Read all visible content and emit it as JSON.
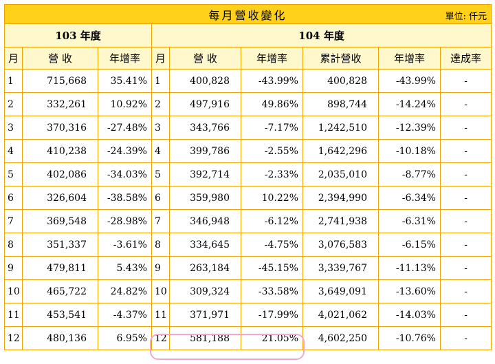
{
  "title": "每月營收變化",
  "unit_label": "單位: 仟元",
  "year_103": "103 年度",
  "year_104": "104 年度",
  "headers_103": [
    "月",
    "營 收",
    "年增率"
  ],
  "headers_104": [
    "月",
    "營 收",
    "年增率",
    "累計營收",
    "年增率",
    "達成率"
  ],
  "rows": [
    {
      "m103": "1",
      "rev103": "715,668",
      "yoy103": "35.41%",
      "m104": "1",
      "rev104": "400,828",
      "yoy104": "-43.99%",
      "cum104": "400,828",
      "cumyoy104": "-43.99%",
      "ach": "-"
    },
    {
      "m103": "2",
      "rev103": "332,261",
      "yoy103": "10.92%",
      "m104": "2",
      "rev104": "497,916",
      "yoy104": "49.86%",
      "cum104": "898,744",
      "cumyoy104": "-14.24%",
      "ach": "-"
    },
    {
      "m103": "3",
      "rev103": "370,316",
      "yoy103": "-27.48%",
      "m104": "3",
      "rev104": "343,766",
      "yoy104": "-7.17%",
      "cum104": "1,242,510",
      "cumyoy104": "-12.39%",
      "ach": "-"
    },
    {
      "m103": "4",
      "rev103": "410,238",
      "yoy103": "-24.39%",
      "m104": "4",
      "rev104": "399,786",
      "yoy104": "-2.55%",
      "cum104": "1,642,296",
      "cumyoy104": "-10.18%",
      "ach": "-"
    },
    {
      "m103": "5",
      "rev103": "402,086",
      "yoy103": "-34.03%",
      "m104": "5",
      "rev104": "392,714",
      "yoy104": "-2.33%",
      "cum104": "2,035,010",
      "cumyoy104": "-8.77%",
      "ach": "-"
    },
    {
      "m103": "6",
      "rev103": "326,604",
      "yoy103": "-38.58%",
      "m104": "6",
      "rev104": "359,980",
      "yoy104": "10.22%",
      "cum104": "2,394,990",
      "cumyoy104": "-6.34%",
      "ach": "-"
    },
    {
      "m103": "7",
      "rev103": "369,548",
      "yoy103": "-28.98%",
      "m104": "7",
      "rev104": "346,948",
      "yoy104": "-6.12%",
      "cum104": "2,741,938",
      "cumyoy104": "-6.31%",
      "ach": "-"
    },
    {
      "m103": "8",
      "rev103": "351,337",
      "yoy103": "-3.61%",
      "m104": "8",
      "rev104": "334,645",
      "yoy104": "-4.75%",
      "cum104": "3,076,583",
      "cumyoy104": "-6.15%",
      "ach": "-"
    },
    {
      "m103": "9",
      "rev103": "479,811",
      "yoy103": "5.43%",
      "m104": "9",
      "rev104": "263,184",
      "yoy104": "-45.15%",
      "cum104": "3,339,767",
      "cumyoy104": "-11.13%",
      "ach": "-"
    },
    {
      "m103": "10",
      "rev103": "465,722",
      "yoy103": "24.82%",
      "m104": "10",
      "rev104": "309,324",
      "yoy104": "-33.58%",
      "cum104": "3,649,091",
      "cumyoy104": "-13.60%",
      "ach": "-"
    },
    {
      "m103": "11",
      "rev103": "453,541",
      "yoy103": "-4.37%",
      "m104": "11",
      "rev104": "371,971",
      "yoy104": "-17.99%",
      "cum104": "4,021,062",
      "cumyoy104": "-14.03%",
      "ach": "-"
    },
    {
      "m103": "12",
      "rev103": "480,136",
      "yoy103": "6.95%",
      "m104": "12",
      "rev104": "581,188",
      "yoy104": "21.05%",
      "cum104": "4,602,250",
      "cumyoy104": "-10.76%",
      "ach": "-"
    }
  ]
}
